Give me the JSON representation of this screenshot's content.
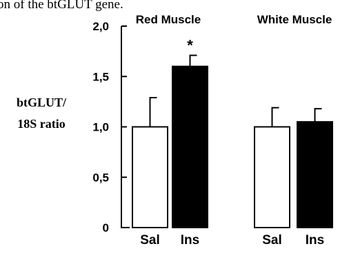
{
  "caption_fragment": "on of the btGLUT gene.",
  "chart_data": {
    "type": "bar",
    "ylabel_lines": [
      "btGLUT/",
      "18S ratio"
    ],
    "ylim": [
      0,
      2.0
    ],
    "yticks": [
      {
        "value": 0,
        "label": "0"
      },
      {
        "value": 0.5,
        "label": "0,5"
      },
      {
        "value": 1.0,
        "label": "1,0"
      },
      {
        "value": 1.5,
        "label": "1,5"
      },
      {
        "value": 2.0,
        "label": "2,0"
      }
    ],
    "groups": [
      {
        "name": "Red Muscle",
        "bars": [
          {
            "label": "Sal",
            "value": 1.0,
            "error": 0.29,
            "fill": "#ffffff",
            "annotation": ""
          },
          {
            "label": "Ins",
            "value": 1.6,
            "error": 0.11,
            "fill": "#000000",
            "annotation": "*"
          }
        ]
      },
      {
        "name": "White Muscle",
        "bars": [
          {
            "label": "Sal",
            "value": 1.0,
            "error": 0.19,
            "fill": "#ffffff",
            "annotation": ""
          },
          {
            "label": "Ins",
            "value": 1.05,
            "error": 0.13,
            "fill": "#000000",
            "annotation": ""
          }
        ]
      }
    ],
    "grid": false,
    "legend": "none"
  }
}
